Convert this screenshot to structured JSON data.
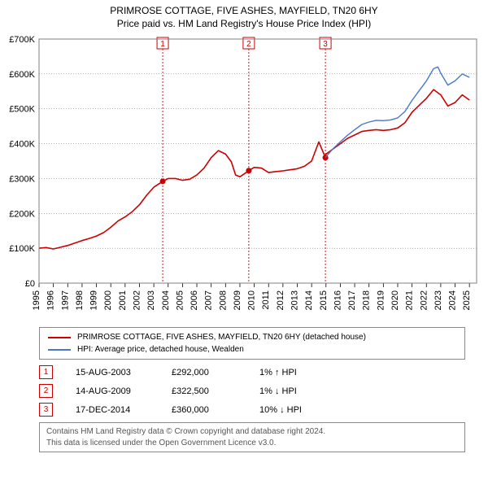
{
  "title": "PRIMROSE COTTAGE, FIVE ASHES, MAYFIELD, TN20 6HY",
  "subtitle": "Price paid vs. HM Land Registry's House Price Index (HPI)",
  "chart": {
    "type": "line",
    "background_color": "#ffffff",
    "plot_border_color": "#808080",
    "grid_color": "#808080",
    "marker_line_color": "#cc0000",
    "marker_box_text_color": "#cc0000",
    "x": {
      "ticks": [
        1995,
        1996,
        1997,
        1998,
        1999,
        2000,
        2001,
        2002,
        2003,
        2004,
        2005,
        2006,
        2007,
        2008,
        2009,
        2010,
        2011,
        2012,
        2013,
        2014,
        2015,
        2016,
        2017,
        2018,
        2019,
        2020,
        2021,
        2022,
        2023,
        2024,
        2025
      ],
      "min": 1995,
      "max": 2025.5,
      "label_fontsize": 11,
      "label_rotation": -90
    },
    "y": {
      "ticks": [
        0,
        100000,
        200000,
        300000,
        400000,
        500000,
        600000,
        700000
      ],
      "tick_labels": [
        "£0",
        "£100K",
        "£200K",
        "£300K",
        "£400K",
        "£500K",
        "£600K",
        "£700K"
      ],
      "min": 0,
      "max": 700000,
      "label_fontsize": 11
    },
    "series": [
      {
        "name": "PRIMROSE COTTAGE, FIVE ASHES, MAYFIELD, TN20 6HY (detached house)",
        "color": "#cc0000",
        "line_width": 1.6,
        "points": [
          [
            1995.0,
            100000
          ],
          [
            1995.5,
            102000
          ],
          [
            1996.0,
            98000
          ],
          [
            1996.5,
            103000
          ],
          [
            1997.0,
            108000
          ],
          [
            1997.5,
            115000
          ],
          [
            1998.0,
            122000
          ],
          [
            1998.5,
            128000
          ],
          [
            1999.0,
            135000
          ],
          [
            1999.5,
            145000
          ],
          [
            2000.0,
            160000
          ],
          [
            2000.5,
            178000
          ],
          [
            2001.0,
            190000
          ],
          [
            2001.5,
            205000
          ],
          [
            2002.0,
            225000
          ],
          [
            2002.5,
            252000
          ],
          [
            2003.0,
            275000
          ],
          [
            2003.62,
            292000
          ],
          [
            2004.0,
            300000
          ],
          [
            2004.5,
            300000
          ],
          [
            2005.0,
            295000
          ],
          [
            2005.5,
            298000
          ],
          [
            2006.0,
            310000
          ],
          [
            2006.5,
            330000
          ],
          [
            2007.0,
            360000
          ],
          [
            2007.5,
            380000
          ],
          [
            2008.0,
            370000
          ],
          [
            2008.4,
            348000
          ],
          [
            2008.7,
            310000
          ],
          [
            2009.0,
            305000
          ],
          [
            2009.62,
            322500
          ],
          [
            2010.0,
            332000
          ],
          [
            2010.5,
            330000
          ],
          [
            2011.0,
            317000
          ],
          [
            2011.5,
            320000
          ],
          [
            2012.0,
            322000
          ],
          [
            2012.5,
            325000
          ],
          [
            2013.0,
            328000
          ],
          [
            2013.5,
            335000
          ],
          [
            2014.0,
            350000
          ],
          [
            2014.5,
            405000
          ],
          [
            2014.96,
            360000
          ],
          [
            2015.0,
            370000
          ],
          [
            2015.5,
            385000
          ],
          [
            2016.0,
            400000
          ],
          [
            2016.5,
            415000
          ],
          [
            2017.0,
            425000
          ],
          [
            2017.5,
            435000
          ],
          [
            2018.0,
            438000
          ],
          [
            2018.5,
            440000
          ],
          [
            2019.0,
            438000
          ],
          [
            2019.5,
            440000
          ],
          [
            2020.0,
            445000
          ],
          [
            2020.5,
            460000
          ],
          [
            2021.0,
            490000
          ],
          [
            2021.5,
            510000
          ],
          [
            2022.0,
            530000
          ],
          [
            2022.5,
            555000
          ],
          [
            2023.0,
            540000
          ],
          [
            2023.5,
            508000
          ],
          [
            2024.0,
            518000
          ],
          [
            2024.5,
            540000
          ],
          [
            2025.0,
            525000
          ]
        ]
      },
      {
        "name": "HPI: Average price, detached house, Wealden",
        "color": "#4a78c8",
        "line_width": 1.4,
        "points": [
          [
            2014.96,
            360000
          ],
          [
            2015.2,
            372000
          ],
          [
            2015.5,
            386000
          ],
          [
            2016.0,
            405000
          ],
          [
            2016.5,
            424000
          ],
          [
            2017.0,
            440000
          ],
          [
            2017.5,
            455000
          ],
          [
            2018.0,
            462000
          ],
          [
            2018.5,
            467000
          ],
          [
            2019.0,
            466000
          ],
          [
            2019.5,
            468000
          ],
          [
            2020.0,
            474000
          ],
          [
            2020.5,
            492000
          ],
          [
            2021.0,
            524000
          ],
          [
            2021.5,
            552000
          ],
          [
            2022.0,
            580000
          ],
          [
            2022.5,
            615000
          ],
          [
            2022.8,
            620000
          ],
          [
            2023.0,
            602000
          ],
          [
            2023.5,
            568000
          ],
          [
            2024.0,
            580000
          ],
          [
            2024.5,
            600000
          ],
          [
            2025.0,
            590000
          ]
        ]
      }
    ],
    "sale_markers": [
      {
        "n": "1",
        "x": 2003.62,
        "y": 292000
      },
      {
        "n": "2",
        "x": 2009.62,
        "y": 322500
      },
      {
        "n": "3",
        "x": 2014.96,
        "y": 360000
      }
    ]
  },
  "legend": {
    "rows": [
      {
        "color": "#cc0000",
        "label": "PRIMROSE COTTAGE, FIVE ASHES, MAYFIELD, TN20 6HY (detached house)"
      },
      {
        "color": "#4a78c8",
        "label": "HPI: Average price, detached house, Wealden"
      }
    ]
  },
  "marker_table": [
    {
      "n": "1",
      "date": "15-AUG-2003",
      "price": "£292,000",
      "delta": "1% ↑ HPI"
    },
    {
      "n": "2",
      "date": "14-AUG-2009",
      "price": "£322,500",
      "delta": "1% ↓ HPI"
    },
    {
      "n": "3",
      "date": "17-DEC-2014",
      "price": "£360,000",
      "delta": "10% ↓ HPI"
    }
  ],
  "attribution": {
    "l1": "Contains HM Land Registry data © Crown copyright and database right 2024.",
    "l2": "This data is licensed under the Open Government Licence v3.0."
  }
}
